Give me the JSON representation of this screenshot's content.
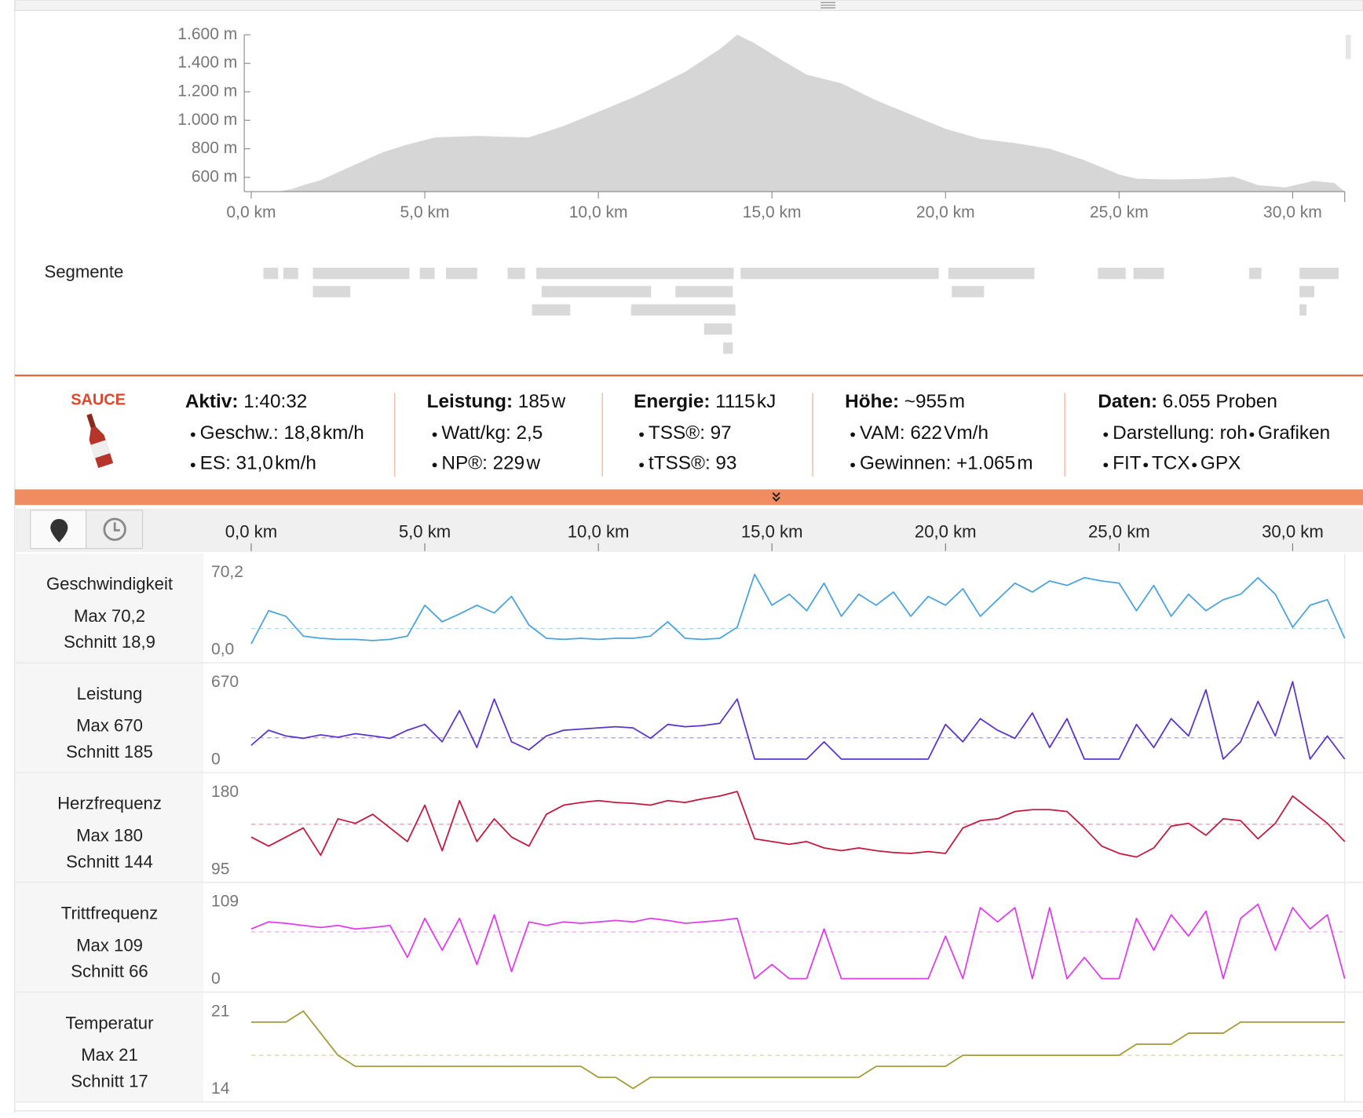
{
  "ui": {
    "segments_label": "Segmente"
  },
  "stats": {
    "logo": "SAUCE",
    "columns": [
      {
        "label": "Aktiv:",
        "value": "1:40:32",
        "items": [
          {
            "label": "Geschw.:",
            "value": "18,8",
            "unit": "km/h"
          },
          {
            "label": "ES:",
            "value": "31,0",
            "unit": "km/h"
          }
        ]
      },
      {
        "label": "Leistung:",
        "value": "185",
        "unit": "w",
        "items": [
          {
            "label": "Watt/kg:",
            "value": "2,5"
          },
          {
            "label": "NP®:",
            "value": "229",
            "unit": "w"
          }
        ]
      },
      {
        "label": "Energie:",
        "value": "1115",
        "unit": "kJ",
        "items": [
          {
            "label": "TSS®:",
            "value": "97"
          },
          {
            "label": "tTSS®:",
            "value": "93"
          }
        ]
      },
      {
        "label": "Höhe:",
        "value": "~955",
        "unit": "m",
        "items": [
          {
            "label": "VAM:",
            "value": "622",
            "unit": "Vm/h"
          },
          {
            "label": "Gewinnen:",
            "value": "+1.065",
            "unit": "m",
            "color": "#3b9b2f"
          }
        ]
      },
      {
        "label": "Daten:",
        "value": "6.055 Proben",
        "items": [
          {
            "label": "Darstellung:",
            "links": [
              "roh",
              "Grafiken"
            ]
          },
          {
            "links": [
              "FIT",
              "TCX",
              "GPX"
            ]
          }
        ]
      }
    ]
  },
  "chart_data": [
    {
      "type": "area",
      "color": "#d6d6d6",
      "x": [
        0,
        0.8,
        1.2,
        1.5,
        2.0,
        3.0,
        3.8,
        4.5,
        5.3,
        6.5,
        8.0,
        9.0,
        10.0,
        11.0,
        11.6,
        12.5,
        13.5,
        14.0,
        14.5,
        15.3,
        16.0,
        17.0,
        18.0,
        19.0,
        20.0,
        21.0,
        22.0,
        23.0,
        24.0,
        25.0,
        25.5,
        26.5,
        27.5,
        28.3,
        29.0,
        29.8,
        30.6,
        31.2,
        31.5
      ],
      "values": [
        500,
        500,
        520,
        545,
        580,
        690,
        777,
        830,
        880,
        890,
        880,
        960,
        1060,
        1160,
        1230,
        1340,
        1500,
        1600,
        1540,
        1420,
        1320,
        1260,
        1140,
        1040,
        940,
        870,
        840,
        800,
        720,
        620,
        590,
        585,
        590,
        605,
        545,
        530,
        575,
        560,
        500
      ],
      "xlim": [
        0,
        31.5
      ],
      "ylim": [
        500,
        1600
      ],
      "xticks": [
        {
          "value": 0,
          "label": "0,0 km"
        },
        {
          "value": 5,
          "label": "5,0 km"
        },
        {
          "value": 10,
          "label": "10,0 km"
        },
        {
          "value": 15,
          "label": "15,0 km"
        },
        {
          "value": 20,
          "label": "20,0 km"
        },
        {
          "value": 25,
          "label": "25,0 km"
        },
        {
          "value": 30,
          "label": "30,0 km"
        }
      ],
      "yticks": [
        {
          "value": 600,
          "label": "600 m"
        },
        {
          "value": 800,
          "label": "800 m"
        },
        {
          "value": 1000,
          "label": "1.000 m"
        },
        {
          "value": 1200,
          "label": "1.200 m"
        },
        {
          "value": 1400,
          "label": "1.400 m"
        },
        {
          "value": 1600,
          "label": "1.600 m"
        }
      ]
    },
    {
      "type": "line",
      "x": [
        0,
        0.5,
        1,
        1.5,
        2,
        2.5,
        3,
        3.5,
        4,
        4.5,
        5,
        5.5,
        6,
        6.5,
        7,
        7.5,
        8,
        8.5,
        9,
        9.5,
        10,
        10.5,
        11,
        11.5,
        12,
        12.5,
        13,
        13.5,
        14,
        14.5,
        15,
        15.5,
        16,
        16.5,
        17,
        17.5,
        18,
        18.5,
        19,
        19.5,
        20,
        20.5,
        21,
        21.5,
        22,
        22.5,
        23,
        23.5,
        24,
        24.5,
        25,
        25.5,
        26,
        26.5,
        27,
        27.5,
        28,
        28.5,
        29,
        29.5,
        30,
        30.5,
        31,
        31.5
      ],
      "xlim": [
        0,
        31.5
      ],
      "xticks": [
        {
          "value": 0,
          "label": "0,0 km"
        },
        {
          "value": 5,
          "label": "5,0 km"
        },
        {
          "value": 10,
          "label": "10,0 km"
        },
        {
          "value": 15,
          "label": "15,0 km"
        },
        {
          "value": 20,
          "label": "20,0 km"
        },
        {
          "value": 25,
          "label": "25,0 km"
        },
        {
          "value": 30,
          "label": "30,0 km"
        }
      ],
      "series": [
        {
          "name": "Geschwindigkeit",
          "color": "#4aa3dc",
          "ylim": [
            0,
            70.2
          ],
          "yticks": [
            {
              "value": 70.2,
              "label": "70,2"
            },
            {
              "value": 0,
              "label": "0,0"
            }
          ],
          "max": "Max 70,2",
          "mean": {
            "value": 18.9,
            "label": "Schnitt 18,9"
          },
          "values": [
            5,
            35,
            30,
            12,
            10,
            9,
            9,
            8,
            9,
            12,
            40,
            25,
            32,
            40,
            33,
            48,
            22,
            10,
            9,
            10,
            9,
            10,
            10,
            12,
            25,
            10,
            9,
            10,
            20,
            68,
            40,
            50,
            35,
            60,
            30,
            50,
            40,
            52,
            30,
            48,
            40,
            55,
            30,
            45,
            60,
            52,
            62,
            58,
            65,
            62,
            60,
            35,
            58,
            30,
            50,
            35,
            45,
            50,
            65,
            50,
            20,
            40,
            45,
            10
          ]
        },
        {
          "name": "Leistung",
          "color": "#5b34c9",
          "ylim": [
            0,
            670
          ],
          "yticks": [
            670,
            0
          ],
          "max": "Max 670",
          "mean": {
            "value": 185,
            "label": "Schnitt 185"
          },
          "values": [
            120,
            250,
            200,
            180,
            210,
            190,
            220,
            200,
            180,
            250,
            300,
            150,
            420,
            100,
            520,
            150,
            80,
            200,
            250,
            260,
            270,
            280,
            270,
            180,
            300,
            280,
            290,
            310,
            520,
            0,
            0,
            0,
            0,
            150,
            0,
            0,
            0,
            0,
            0,
            0,
            300,
            150,
            350,
            250,
            180,
            400,
            100,
            350,
            0,
            0,
            0,
            300,
            100,
            350,
            200,
            600,
            0,
            150,
            500,
            200,
            670,
            0,
            200,
            0
          ]
        },
        {
          "name": "Herzfrequenz",
          "color": "#c4183e",
          "ylim": [
            95,
            180
          ],
          "yticks": [
            180,
            95
          ],
          "max": "Max 180",
          "mean": {
            "value": 144,
            "label": "Schnitt 144"
          },
          "values": [
            130,
            120,
            130,
            140,
            110,
            150,
            145,
            155,
            140,
            125,
            165,
            115,
            170,
            125,
            150,
            130,
            120,
            155,
            165,
            168,
            170,
            168,
            167,
            165,
            170,
            168,
            172,
            175,
            180,
            128,
            125,
            122,
            125,
            118,
            115,
            118,
            115,
            113,
            112,
            114,
            112,
            140,
            148,
            150,
            158,
            160,
            160,
            158,
            140,
            120,
            112,
            108,
            118,
            142,
            145,
            132,
            150,
            148,
            128,
            145,
            175,
            160,
            145,
            125
          ]
        },
        {
          "name": "Trittfrequenz",
          "color": "#e03ced",
          "ylim": [
            0,
            109
          ],
          "yticks": [
            109,
            0
          ],
          "max": "Max 109",
          "mean": {
            "value": 66,
            "label": "Schnitt 66"
          },
          "values": [
            70,
            80,
            78,
            75,
            72,
            75,
            70,
            72,
            75,
            30,
            85,
            40,
            85,
            20,
            90,
            10,
            80,
            75,
            80,
            78,
            80,
            82,
            80,
            85,
            82,
            78,
            80,
            82,
            85,
            0,
            20,
            0,
            0,
            70,
            0,
            0,
            0,
            0,
            0,
            0,
            60,
            0,
            100,
            80,
            100,
            0,
            100,
            0,
            30,
            0,
            0,
            85,
            40,
            90,
            60,
            95,
            0,
            85,
            105,
            40,
            100,
            70,
            90,
            0
          ]
        },
        {
          "name": "Temperatur",
          "color": "#a39a3a",
          "ylim": [
            14,
            21
          ],
          "yticks": [
            21,
            14
          ],
          "max": "Max 21",
          "mean": {
            "value": 17,
            "label": "Schnitt 17"
          },
          "values": [
            20,
            20,
            20,
            21,
            19,
            17,
            16,
            16,
            16,
            16,
            16,
            16,
            16,
            16,
            16,
            16,
            16,
            16,
            16,
            16,
            15,
            15,
            14,
            15,
            15,
            15,
            15,
            15,
            15,
            15,
            15,
            15,
            15,
            15,
            15,
            15,
            16,
            16,
            16,
            16,
            16,
            17,
            17,
            17,
            17,
            17,
            17,
            17,
            17,
            17,
            17,
            18,
            18,
            18,
            19,
            19,
            19,
            20,
            20,
            20,
            20,
            20,
            20,
            20
          ]
        }
      ]
    }
  ]
}
